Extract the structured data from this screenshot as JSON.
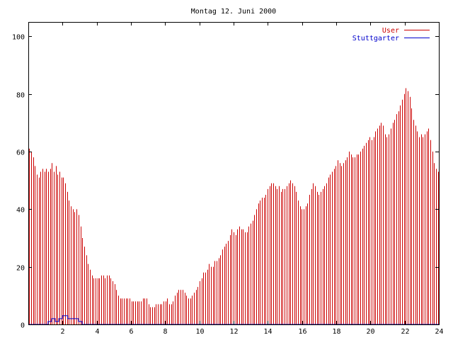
{
  "chart_data": {
    "type": "bar",
    "title": "Montag 12. Juni 2000",
    "xlabel": "",
    "ylabel": "",
    "xlim": [
      0,
      24
    ],
    "ylim": [
      0,
      105
    ],
    "x_ticks": [
      2,
      4,
      6,
      8,
      10,
      12,
      14,
      16,
      18,
      20,
      22,
      24
    ],
    "y_ticks": [
      0,
      20,
      40,
      60,
      80,
      100
    ],
    "grid": false,
    "legend_position": "top-right",
    "interval_hours": 0.0833,
    "series": [
      {
        "name": "User",
        "kind": "impulses",
        "color": "#cc0000",
        "values": [
          61,
          60,
          58,
          55,
          52,
          51,
          53,
          54,
          53,
          54,
          53,
          54,
          56,
          53,
          55,
          52,
          53,
          51,
          51,
          49,
          46,
          43,
          41,
          40,
          39,
          40,
          38,
          34,
          30,
          27,
          24,
          21,
          19,
          17,
          16,
          16,
          16,
          16,
          17,
          17,
          16,
          17,
          17,
          16,
          15,
          14,
          12,
          10,
          9,
          9,
          9,
          9,
          9,
          9,
          8,
          8,
          8,
          8,
          8,
          8,
          9,
          9,
          9,
          7,
          6,
          6,
          6,
          7,
          7,
          7,
          7,
          8,
          8,
          9,
          7,
          7,
          8,
          10,
          11,
          12,
          12,
          12,
          11,
          10,
          9,
          9,
          10,
          11,
          12,
          13,
          15,
          16,
          18,
          18,
          19,
          21,
          20,
          20,
          22,
          22,
          23,
          24,
          26,
          27,
          28,
          29,
          31,
          33,
          32,
          31,
          33,
          34,
          33,
          33,
          32,
          32,
          34,
          35,
          36,
          38,
          40,
          42,
          43,
          44,
          44,
          45,
          47,
          48,
          49,
          49,
          48,
          47,
          48,
          46,
          47,
          47,
          48,
          49,
          50,
          49,
          48,
          46,
          43,
          41,
          40,
          40,
          41,
          42,
          45,
          47,
          49,
          48,
          46,
          45,
          46,
          47,
          48,
          49,
          51,
          52,
          53,
          54,
          55,
          57,
          56,
          55,
          56,
          57,
          58,
          60,
          59,
          58,
          58,
          59,
          59,
          60,
          61,
          62,
          63,
          64,
          65,
          64,
          65,
          67,
          68,
          69,
          70,
          69,
          66,
          65,
          66,
          68,
          70,
          71,
          73,
          74,
          76,
          78,
          80,
          82,
          81,
          79,
          75,
          71,
          69,
          67,
          65,
          66,
          65,
          66,
          67,
          68,
          64,
          60,
          56,
          54,
          53
        ]
      },
      {
        "name": "Stuttgarter",
        "kind": "step",
        "color": "#0000cc",
        "values": [
          0,
          0,
          0,
          0,
          0,
          0,
          0,
          0,
          0,
          0,
          0,
          1,
          1,
          2,
          2,
          1,
          1,
          2,
          2,
          3,
          3,
          3,
          2,
          2,
          2,
          2,
          2,
          2,
          1,
          1,
          0,
          0,
          0,
          0,
          0,
          0,
          0,
          0,
          0,
          0,
          0,
          0,
          0,
          0,
          0,
          0,
          0,
          0,
          0,
          0,
          0,
          0,
          0,
          0,
          0,
          0,
          0,
          0,
          0,
          0,
          0,
          0,
          0,
          0,
          0,
          0,
          0,
          0,
          0,
          0,
          0,
          0,
          0,
          0,
          0,
          0,
          0,
          0,
          0,
          0,
          0,
          0,
          0,
          0,
          0,
          0,
          0,
          0,
          0,
          0,
          0,
          0,
          0,
          0,
          0,
          0,
          0,
          0,
          0,
          0,
          0,
          0,
          0,
          0,
          0,
          0,
          0,
          0,
          0,
          0,
          0,
          0,
          0,
          0,
          0,
          0,
          0,
          0,
          0,
          0,
          0,
          0,
          0,
          0,
          0,
          0,
          0,
          0,
          0,
          0,
          0,
          0,
          0,
          0,
          0,
          0,
          0,
          0,
          0,
          0,
          0,
          0,
          0,
          0,
          0,
          0,
          0,
          0,
          0,
          0,
          0,
          0,
          0,
          0,
          0,
          0,
          0,
          0,
          0,
          0,
          0,
          0,
          0,
          0,
          0,
          0,
          0,
          0,
          0,
          0,
          0,
          0,
          0,
          0,
          0,
          0,
          0,
          0,
          0,
          0,
          0,
          0,
          0,
          0,
          0,
          0,
          0,
          0,
          0,
          0,
          0,
          0,
          0,
          0,
          0,
          0,
          0,
          0,
          0,
          0,
          0,
          0,
          0,
          0,
          0,
          0,
          0,
          0,
          0,
          0,
          0,
          0,
          0,
          0,
          0,
          0,
          0,
          0,
          0,
          0,
          0,
          0,
          0,
          0,
          0,
          0,
          0,
          0,
          0
        ]
      }
    ]
  }
}
